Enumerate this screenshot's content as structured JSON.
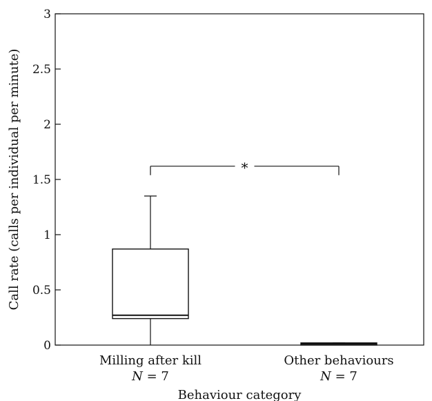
{
  "chart_data": {
    "type": "box",
    "xlabel": "Behaviour category",
    "ylabel": "Call rate (calls per individual per minute)",
    "ylim": [
      0,
      3
    ],
    "yticks": [
      0,
      0.5,
      1,
      1.5,
      2,
      2.5,
      3
    ],
    "ytick_labels": [
      "0",
      "0.5",
      "1",
      "1.5",
      "2",
      "2.5",
      "3"
    ],
    "grid": false,
    "categories": [
      {
        "label": "Milling after kill",
        "n_symbol": "N",
        "n_text": " = 7",
        "whisker_low": 0,
        "q1": 0.24,
        "median": 0.27,
        "q3": 0.87,
        "whisker_high": 1.35
      },
      {
        "label": "Other behaviours",
        "n_symbol": "N",
        "n_text": " = 7",
        "whisker_low": 0,
        "q1": 0,
        "median": 0.01,
        "q3": 0.02,
        "whisker_high": 0.02
      }
    ],
    "annotations": [
      {
        "text": "*",
        "type": "significance-bracket",
        "from": 0,
        "to": 1,
        "y": 1.62
      }
    ]
  }
}
